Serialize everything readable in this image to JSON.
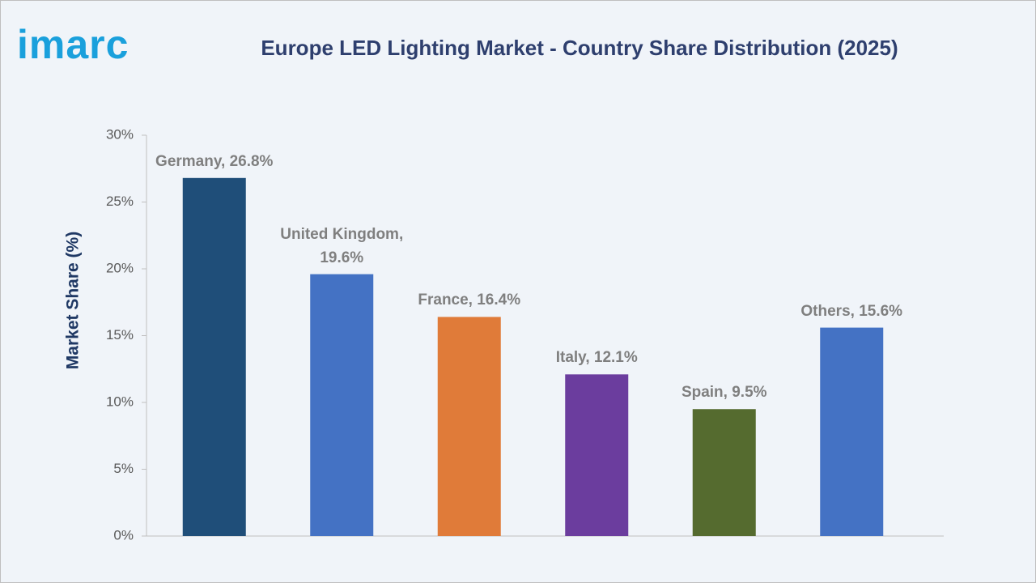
{
  "logo": "imarc",
  "chart_data": {
    "type": "bar",
    "title": "Europe LED Lighting Market - Country Share Distribution (2025)",
    "y_label": "Market Share (%)",
    "categories": [
      "Germany",
      "United Kingdom",
      "France",
      "Italy",
      "Spain",
      "Others"
    ],
    "values": [
      26.8,
      19.6,
      16.4,
      12.1,
      9.5,
      15.6
    ],
    "value_labels": [
      "Germany, 26.8%",
      "United Kingdom, 19.6%",
      "France, 16.4%",
      "Italy, 12.1%",
      "Spain, 9.5%",
      "Others, 15.6%"
    ],
    "colors": [
      "#1f4e79",
      "#4472c4",
      "#e07b39",
      "#6b3d9e",
      "#556b2f",
      "#4472c4"
    ],
    "ylim": [
      0,
      30
    ],
    "yticks": [
      {
        "value": 0,
        "label": "0%"
      },
      {
        "value": 5,
        "label": "5%"
      },
      {
        "value": 10,
        "label": "10%"
      },
      {
        "value": 15,
        "label": "15%"
      },
      {
        "value": 20,
        "label": "20%"
      },
      {
        "value": 25,
        "label": "25%"
      },
      {
        "value": 30,
        "label": "30%"
      }
    ],
    "grid": false
  }
}
